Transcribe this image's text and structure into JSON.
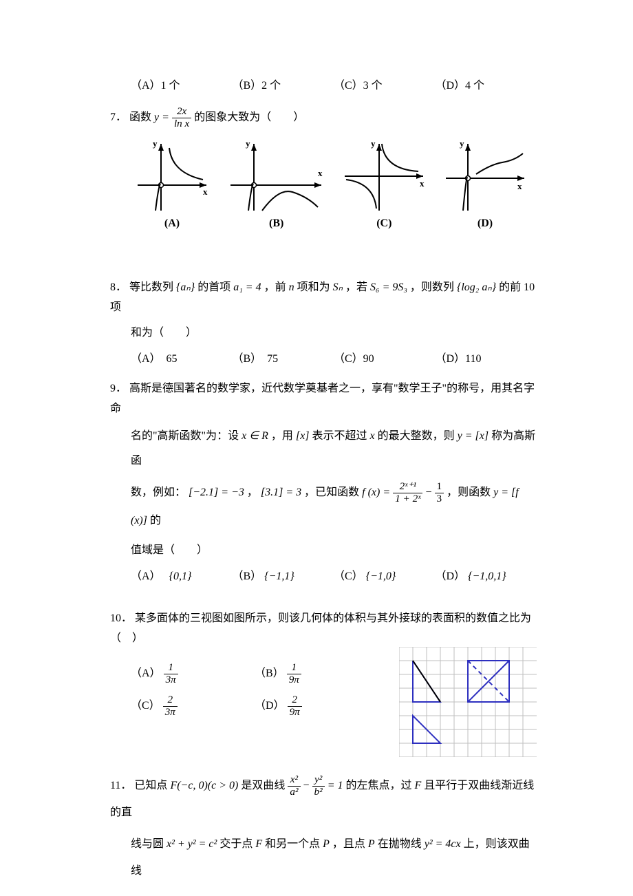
{
  "q6_options": {
    "A": "（A）1 个",
    "B": "（B）2 个",
    "C": "（C）3 个",
    "D": "（D）4 个"
  },
  "q7": {
    "num": "7．",
    "text_before": "函数 ",
    "formula_y": "y = ",
    "frac_num": "2x",
    "frac_den": "ln x",
    "text_after": " 的图象大致为（　　）",
    "labels": {
      "A": "(A)",
      "B": "(B)",
      "C": "(C)",
      "D": "(D)"
    },
    "axis_x": "x",
    "axis_y": "y",
    "curve_color": "#000000",
    "graph_stroke_width": 2
  },
  "q8": {
    "num": "8．",
    "line1_a": "等比数列",
    "line1_b": "的首项 ",
    "line1_c": "a₁ = 4",
    "line1_d": "，前 ",
    "line1_e": "n",
    "line1_f": " 项和为 ",
    "line1_g": "Sₙ",
    "line1_h": "，若 ",
    "line1_i": "S₆ = 9S₃",
    "line1_j": "，则数列",
    "line1_k": "的前 10 项",
    "brace_an": "{aₙ}",
    "brace_log": "{log₂ aₙ}",
    "line2": "和为（　　）",
    "options": {
      "A": "（A）　65",
      "B": "（B）　75",
      "C": "（C）90",
      "D": "（D）110"
    }
  },
  "q9": {
    "num": "9．",
    "line1": "高斯是德国著名的数学家，近代数学奠基者之一，享有\"数学王子\"的称号，用其名字命",
    "line2_a": "名的\"高斯函数\"为：设 ",
    "line2_b": "x ∈ R",
    "line2_c": "，用",
    "line2_d": "[x]",
    "line2_e": "表示不超过 ",
    "line2_f": "x",
    "line2_g": " 的最大整数，则 ",
    "line2_h": "y = [x]",
    "line2_i": "称为高斯函",
    "line3_a": "数，例如：",
    "line3_b": "[−2.1] = −3",
    "line3_c": "，",
    "line3_d": "[3.1] = 3",
    "line3_e": "，已知函数 ",
    "line3_f": "f (x) = ",
    "frac1_num": "2ˣ⁺¹",
    "frac1_den": "1 + 2ˣ",
    "line3_g": " − ",
    "frac2_num": "1",
    "frac2_den": "3",
    "line3_h": "，则函数 ",
    "line3_i": "y = [f (x)]",
    "line3_j": "的",
    "line4": "值域是（　　）",
    "options": {
      "A_lbl": "（A）",
      "A": "{0,1}",
      "B_lbl": "（B）",
      "B": "{−1,1}",
      "C_lbl": "（C）",
      "C": "{−1,0}",
      "D_lbl": "（D）",
      "D": "{−1,0,1}"
    }
  },
  "q10": {
    "num": "10．",
    "line1": "某多面体的三视图如图所示，则该几何体的体积与其外接球的表面积的数值之比为（　）",
    "options": {
      "A_lbl": "（A）",
      "A_num": "1",
      "A_den": "3π",
      "B_lbl": "（B）",
      "B_num": "1",
      "B_den": "9π",
      "C_lbl": "（C）",
      "C_num": "2",
      "C_den": "3π",
      "D_lbl": "（D）",
      "D_num": "2",
      "D_den": "9π"
    },
    "views": {
      "grid_color": "#bfbfbf",
      "shape_color": "#2d2fbf",
      "shape_stroke_width": 2,
      "grid_cell": 20,
      "grid_cols": 9,
      "grid_rows": 7,
      "tri1": [
        [
          20,
          20
        ],
        [
          20,
          80
        ],
        [
          60,
          80
        ]
      ],
      "rect2": [
        [
          100,
          20
        ],
        [
          160,
          20
        ],
        [
          160,
          80
        ],
        [
          100,
          80
        ]
      ],
      "diag2a": [
        [
          100,
          20
        ],
        [
          160,
          80
        ]
      ],
      "diag2b": [
        [
          100,
          80
        ],
        [
          160,
          20
        ]
      ],
      "tri3": [
        [
          20,
          100
        ],
        [
          20,
          140
        ],
        [
          60,
          140
        ]
      ]
    }
  },
  "q11": {
    "num": "11．",
    "line1_a": "已知点 ",
    "line1_b": "F(−c, 0)(c > 0)",
    "line1_c": " 是双曲线 ",
    "frac1_num": "x²",
    "frac1_den": "a²",
    "line1_d": " − ",
    "frac2_num": "y²",
    "frac2_den": "b²",
    "line1_e": " = 1",
    "line1_f": "的左焦点，过 ",
    "line1_g": "F",
    "line1_h": " 且平行于双曲线渐近线的直",
    "line2_a": "线与圆 ",
    "line2_b": "x² + y² = c²",
    "line2_c": " 交于点 ",
    "line2_d": "F",
    "line2_e": " 和另一个点 ",
    "line2_f": "P",
    "line2_g": "，且点 ",
    "line2_h": "P",
    "line2_i": " 在抛物线 ",
    "line2_j": "y² = 4cx",
    "line2_k": " 上，则该双曲线"
  }
}
